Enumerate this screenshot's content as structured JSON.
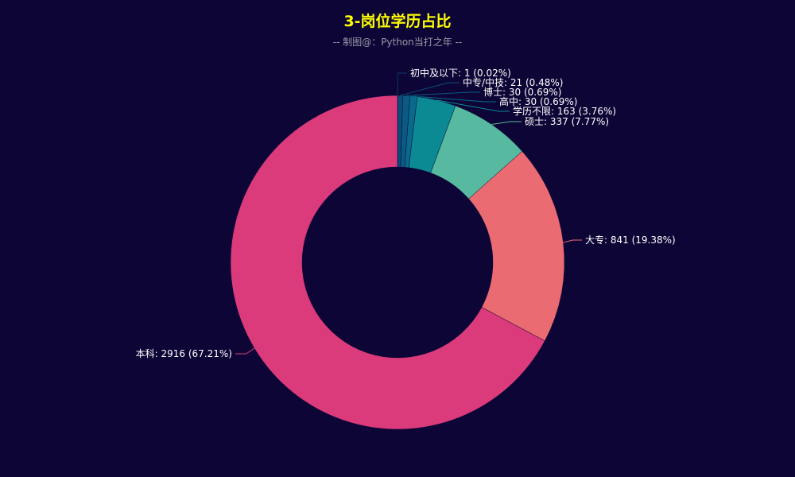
{
  "title": "3-岗位学历占比",
  "subtitle": "-- 制图@：Python当打之年 --",
  "chart_data": {
    "type": "pie",
    "variant": "donut",
    "title": "3-岗位学历占比",
    "subtitle": "-- 制图@：Python当打之年 --",
    "slices": [
      {
        "name": "初中及以下",
        "value": 1,
        "percent": "0.02%",
        "color": "#0b3a66",
        "label": "初中及以下: 1 (0.02%)"
      },
      {
        "name": "中专/中技",
        "value": 21,
        "percent": "0.48%",
        "color": "#0a4f7a",
        "label": "中专/中技: 21 (0.48%)"
      },
      {
        "name": "博士",
        "value": 30,
        "percent": "0.69%",
        "color": "#0b5a84",
        "label": "博士: 30 (0.69%)"
      },
      {
        "name": "高中",
        "value": 30,
        "percent": "0.69%",
        "color": "#0a6a8c",
        "label": "高中: 30 (0.69%)"
      },
      {
        "name": "学历不限",
        "value": 163,
        "percent": "3.76%",
        "color": "#0b8a94",
        "label": "学历不限: 163 (3.76%)"
      },
      {
        "name": "硕士",
        "value": 337,
        "percent": "7.77%",
        "color": "#56b9a0",
        "label": "硕士: 337 (7.77%)"
      },
      {
        "name": "大专",
        "value": 841,
        "percent": "19.38%",
        "color": "#eb6b72",
        "label": "大专: 841 (19.38%)"
      },
      {
        "name": "本科",
        "value": 2916,
        "percent": "67.21%",
        "color": "#db3a7b",
        "label": "本科: 2916 (67.21%)"
      }
    ]
  }
}
